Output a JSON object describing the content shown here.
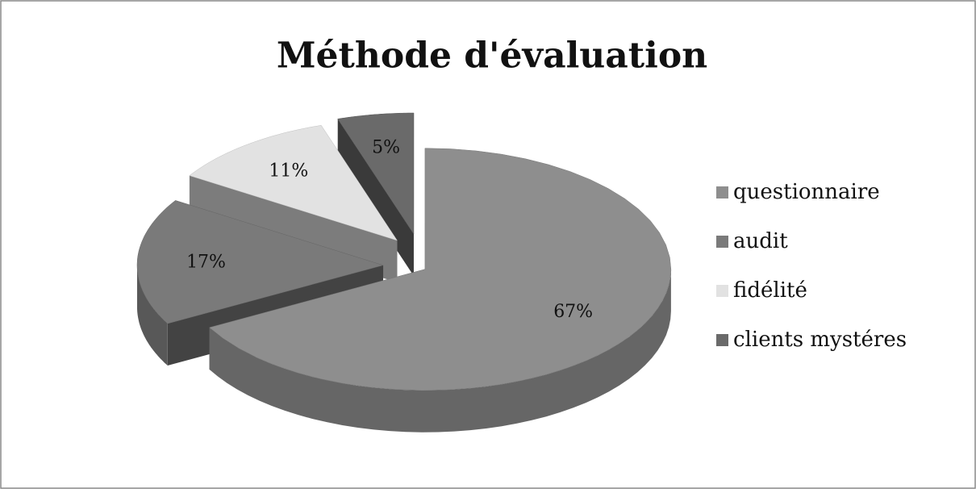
{
  "chart_data": {
    "type": "pie",
    "title": "Méthode d'évaluation",
    "categories": [
      "questionnaire",
      "audit",
      "fidélité",
      "clients mystéres"
    ],
    "values": [
      67,
      17,
      11,
      5
    ],
    "value_labels": [
      "67%",
      "17%",
      "11%",
      "5%"
    ],
    "colors": [
      "#8e8e8e",
      "#7a7a7a",
      "#e2e2e2",
      "#6a6a6a"
    ],
    "legend": "right"
  }
}
